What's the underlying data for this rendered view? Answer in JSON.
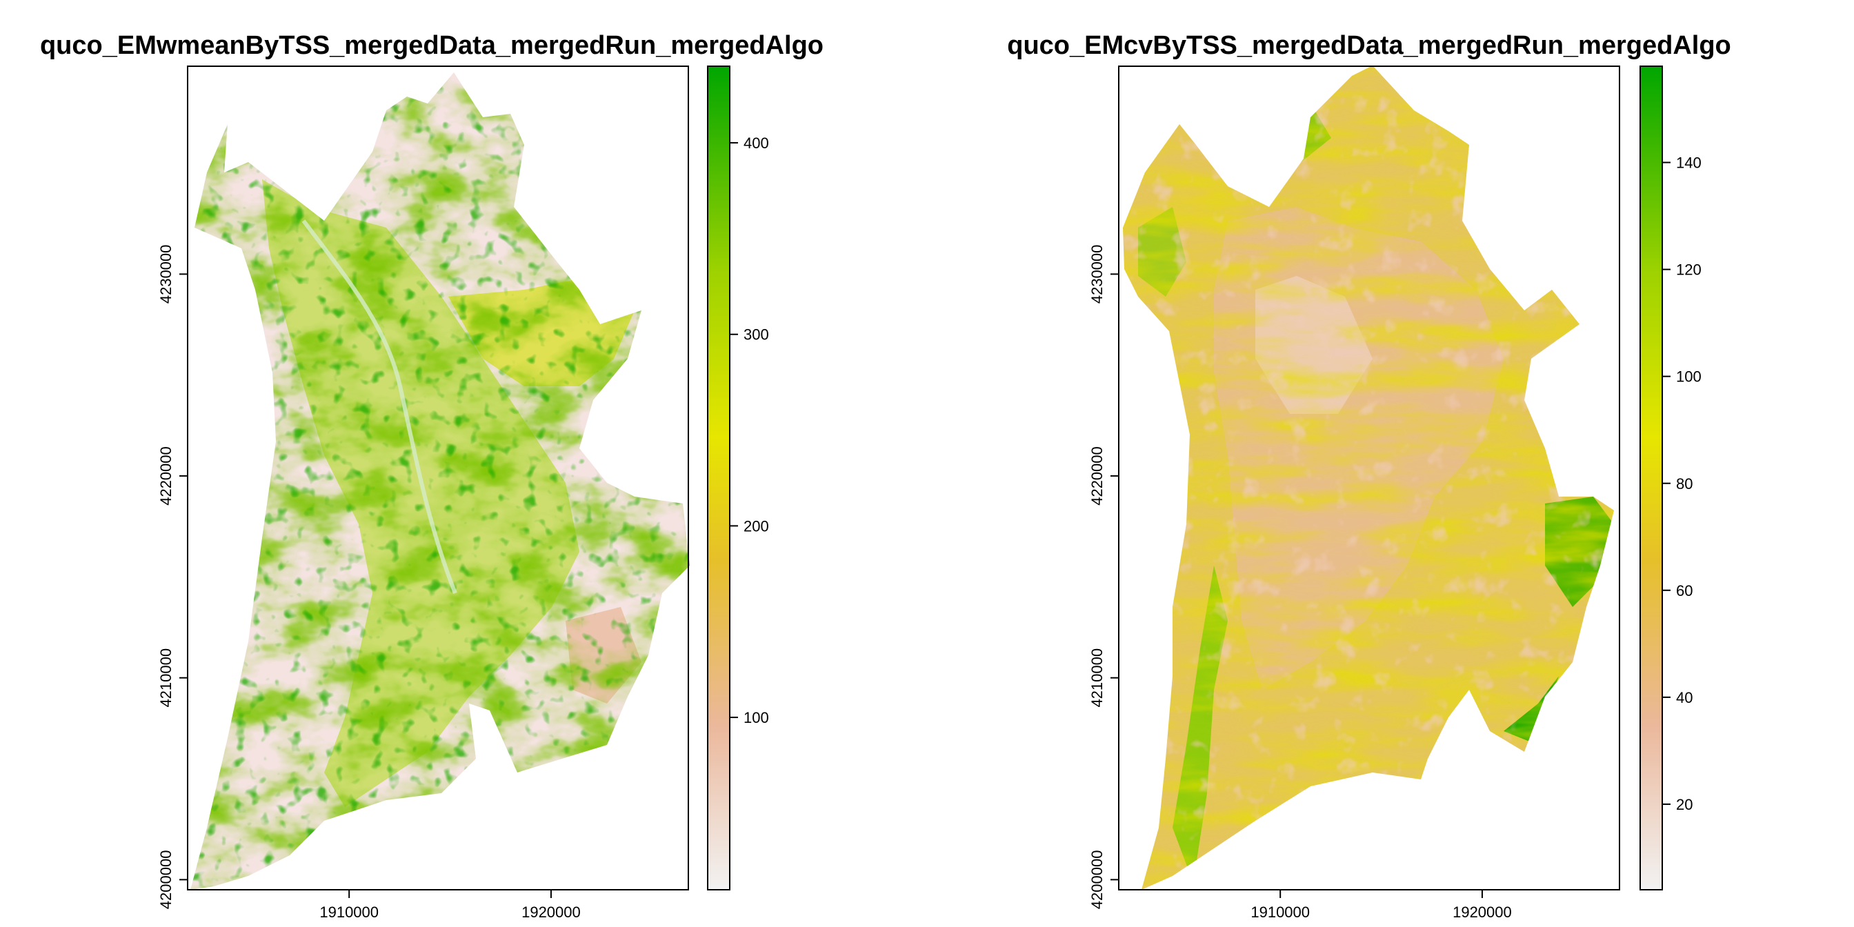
{
  "chart_data": [
    {
      "type": "heatmap",
      "title": "quco_EMwmeanByTSS_mergedData_mergedRun_mergedAlgo",
      "xlabel": "",
      "ylabel": "",
      "xlim": [
        1902000,
        1926800
      ],
      "ylim": [
        4199500,
        4240300
      ],
      "x_ticks": [
        1910000,
        1920000
      ],
      "x_tick_labels": [
        "1910000",
        "1920000"
      ],
      "y_ticks": [
        4200000,
        4210000,
        4220000,
        4230000
      ],
      "y_tick_labels": [
        "4200000",
        "4210000",
        "4220000",
        "4230000"
      ],
      "legend": {
        "position": "right",
        "range": [
          10,
          440
        ],
        "ticks": [
          100,
          200,
          300,
          400
        ],
        "tick_labels": [
          "100",
          "200",
          "300",
          "400"
        ],
        "colors": [
          "#f2f2f2",
          "#ebb89b",
          "#e6c02a",
          "#e6e600",
          "#9ed200",
          "#00a600"
        ]
      },
      "grid": false
    },
    {
      "type": "heatmap",
      "title": "quco_EMcvByTSS_mergedData_mergedRun_mergedAlgo",
      "xlabel": "",
      "ylabel": "",
      "xlim": [
        1902000,
        1926800
      ],
      "ylim": [
        4199500,
        4240300
      ],
      "x_ticks": [
        1910000,
        1920000
      ],
      "x_tick_labels": [
        "1910000",
        "1920000"
      ],
      "y_ticks": [
        4200000,
        4210000,
        4220000,
        4230000
      ],
      "y_tick_labels": [
        "4200000",
        "4210000",
        "4220000",
        "4230000"
      ],
      "legend": {
        "position": "right",
        "range": [
          4,
          158
        ],
        "ticks": [
          20,
          40,
          60,
          80,
          100,
          120,
          140
        ],
        "tick_labels": [
          "20",
          "40",
          "60",
          "80",
          "100",
          "120",
          "140"
        ],
        "colors": [
          "#f2f2f2",
          "#ebb89b",
          "#e6c02a",
          "#e6e600",
          "#9ed200",
          "#00a600"
        ]
      },
      "grid": false
    }
  ]
}
